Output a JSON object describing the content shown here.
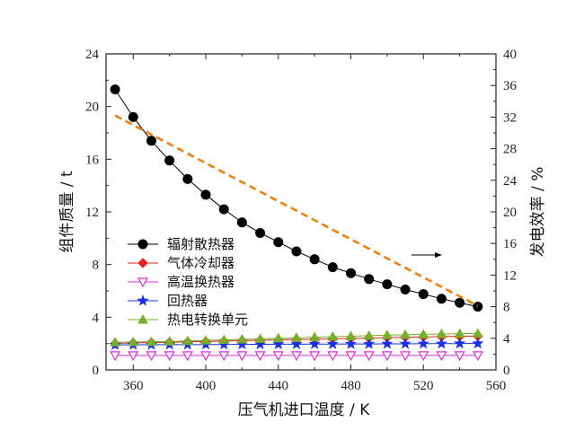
{
  "chart_data": {
    "type": "line",
    "xlabel": "压气机进口温度 / K",
    "ylabel_left": "组件质量 / t",
    "ylabel_right": "发电效率 / %",
    "xlim": [
      345,
      560
    ],
    "ylim_left": [
      0,
      24
    ],
    "ylim_right": [
      0,
      40
    ],
    "xticks": [
      360,
      400,
      440,
      480,
      520,
      560
    ],
    "yticks_left": [
      0,
      4,
      8,
      12,
      16,
      20,
      24
    ],
    "yticks_right": [
      0,
      4,
      8,
      12,
      16,
      20,
      24,
      28,
      32,
      36,
      40
    ],
    "grid": false,
    "legend_position": "left-middle",
    "x": [
      350,
      360,
      370,
      380,
      390,
      400,
      410,
      420,
      430,
      440,
      450,
      460,
      470,
      480,
      490,
      500,
      510,
      520,
      530,
      540,
      550
    ],
    "series": [
      {
        "name": "辐射散热器",
        "axis": "left",
        "color": "#000000",
        "marker": "circle",
        "values": [
          21.3,
          19.2,
          17.4,
          15.9,
          14.5,
          13.3,
          12.2,
          11.2,
          10.4,
          9.7,
          9.0,
          8.4,
          7.8,
          7.35,
          6.9,
          6.5,
          6.1,
          5.75,
          5.4,
          5.1,
          4.8
        ]
      },
      {
        "name": "气体冷却器",
        "axis": "left",
        "color": "#e8231a",
        "marker": "diamond",
        "values": [
          2.0,
          2.05,
          2.08,
          2.1,
          2.13,
          2.16,
          2.19,
          2.22,
          2.25,
          2.28,
          2.3,
          2.33,
          2.36,
          2.39,
          2.42,
          2.45,
          2.48,
          2.5,
          2.53,
          2.55,
          2.57
        ]
      },
      {
        "name": "高温换热器",
        "axis": "left",
        "color": "#e12ad9",
        "marker": "triangle-down-open",
        "values": [
          1.1,
          1.1,
          1.1,
          1.1,
          1.1,
          1.1,
          1.1,
          1.1,
          1.1,
          1.1,
          1.1,
          1.1,
          1.1,
          1.1,
          1.1,
          1.1,
          1.1,
          1.1,
          1.1,
          1.1,
          1.1
        ]
      },
      {
        "name": "回热器",
        "axis": "left",
        "color": "#1a2ee8",
        "marker": "star",
        "values": [
          1.9,
          1.91,
          1.91,
          1.92,
          1.92,
          1.93,
          1.93,
          1.94,
          1.94,
          1.95,
          1.95,
          1.96,
          1.96,
          1.97,
          1.97,
          1.98,
          1.98,
          1.99,
          1.99,
          2.0,
          2.0
        ]
      },
      {
        "name": "热电转换单元",
        "axis": "left",
        "color": "#74b02a",
        "marker": "triangle-up",
        "values": [
          2.1,
          2.12,
          2.14,
          2.16,
          2.2,
          2.24,
          2.28,
          2.32,
          2.36,
          2.4,
          2.44,
          2.48,
          2.52,
          2.56,
          2.6,
          2.64,
          2.67,
          2.7,
          2.73,
          2.75,
          2.77
        ]
      },
      {
        "axis": "right",
        "color": "#f07f0f",
        "style": "dashed",
        "x": [
          350,
          550
        ],
        "values": [
          32.2,
          8.1
        ]
      }
    ],
    "annotation": {
      "type": "arrow",
      "direction": "right",
      "meaning": "points to right axis"
    }
  }
}
